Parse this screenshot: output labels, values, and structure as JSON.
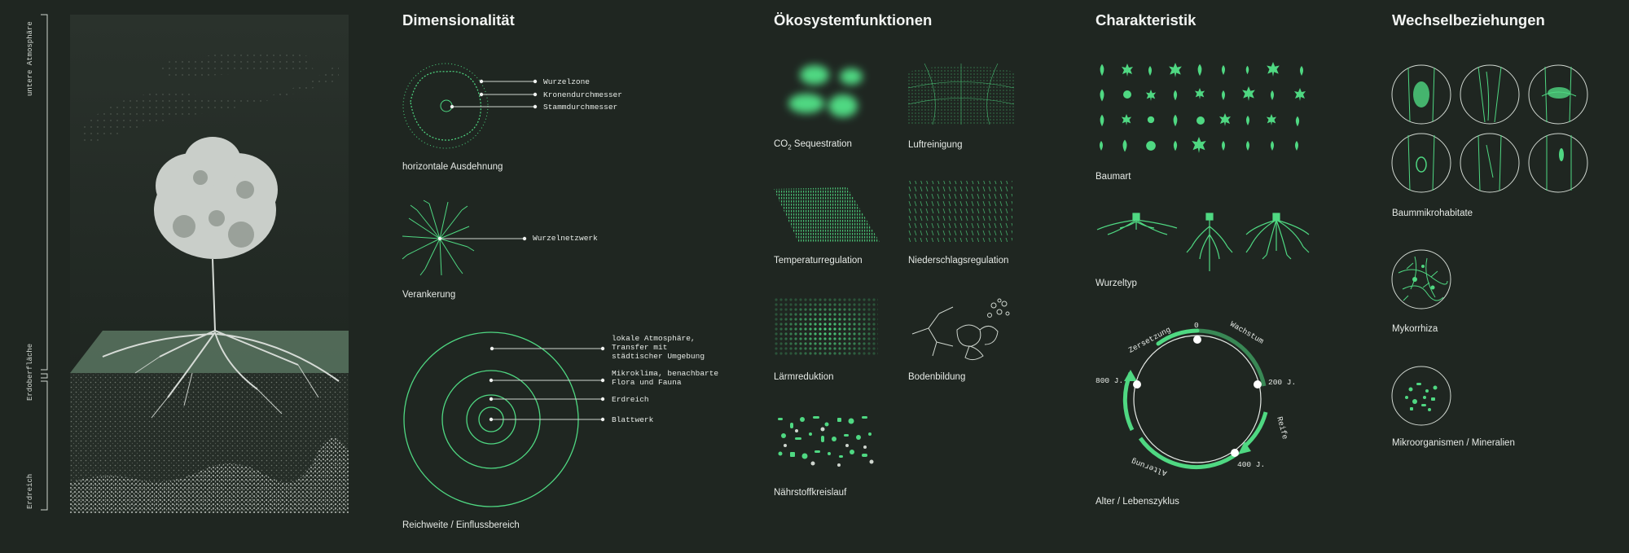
{
  "colors": {
    "background": "#1f2621",
    "accent": "#4fd882",
    "text": "#e8ece8",
    "line": "#cfd6cf"
  },
  "left_panel": {
    "layers": [
      "untere Atmosphäre",
      "Erdoberfläche",
      "Erdreich"
    ]
  },
  "dimensionalitaet": {
    "title": "Dimensionalität",
    "horizontal": {
      "labels": [
        "Wurzelzone",
        "Kronendurchmesser",
        "Stammdurchmesser"
      ],
      "caption": "horizontale Ausdehnung"
    },
    "anchoring": {
      "label": "Wurzelnetzwerk",
      "caption": "Verankerung"
    },
    "reach": {
      "labels": [
        [
          "lokale Atmosphäre,",
          "Transfer mit",
          "städtischer Umgebung"
        ],
        [
          "Mikroklima, benachbarte",
          "Flora und Fauna"
        ],
        [
          "Erdreich"
        ],
        [
          "Blattwerk"
        ]
      ],
      "caption": "Reichweite / Einflussbereich"
    }
  },
  "oekosystem": {
    "title": "Ökosystemfunktionen",
    "co2": {
      "prefix": "CO",
      "sub": "2",
      "suffix": " Sequestration"
    },
    "items": [
      "Luftreinigung",
      "Temperaturregulation",
      "Niederschlagsregulation",
      "Lärmreduktion",
      "Bodenbildung",
      "Nährstoffkreislauf"
    ]
  },
  "charakteristik": {
    "title": "Charakteristik",
    "captions": {
      "baumart": "Baumart",
      "wurzeltyp": "Wurzeltyp",
      "alter": "Alter / Lebenszyklus"
    },
    "cycle": {
      "ticks": [
        "0",
        "200 J.",
        "400 J.",
        "800 J."
      ],
      "phases": [
        "Wachstum",
        "Reife",
        "Alterung",
        "Zersetzung"
      ]
    }
  },
  "wechsel": {
    "title": "Wechselbeziehungen",
    "items": [
      "Baummikrohabitate",
      "Mykorrhiza",
      "Mikroorganismen / Mineralien"
    ]
  }
}
